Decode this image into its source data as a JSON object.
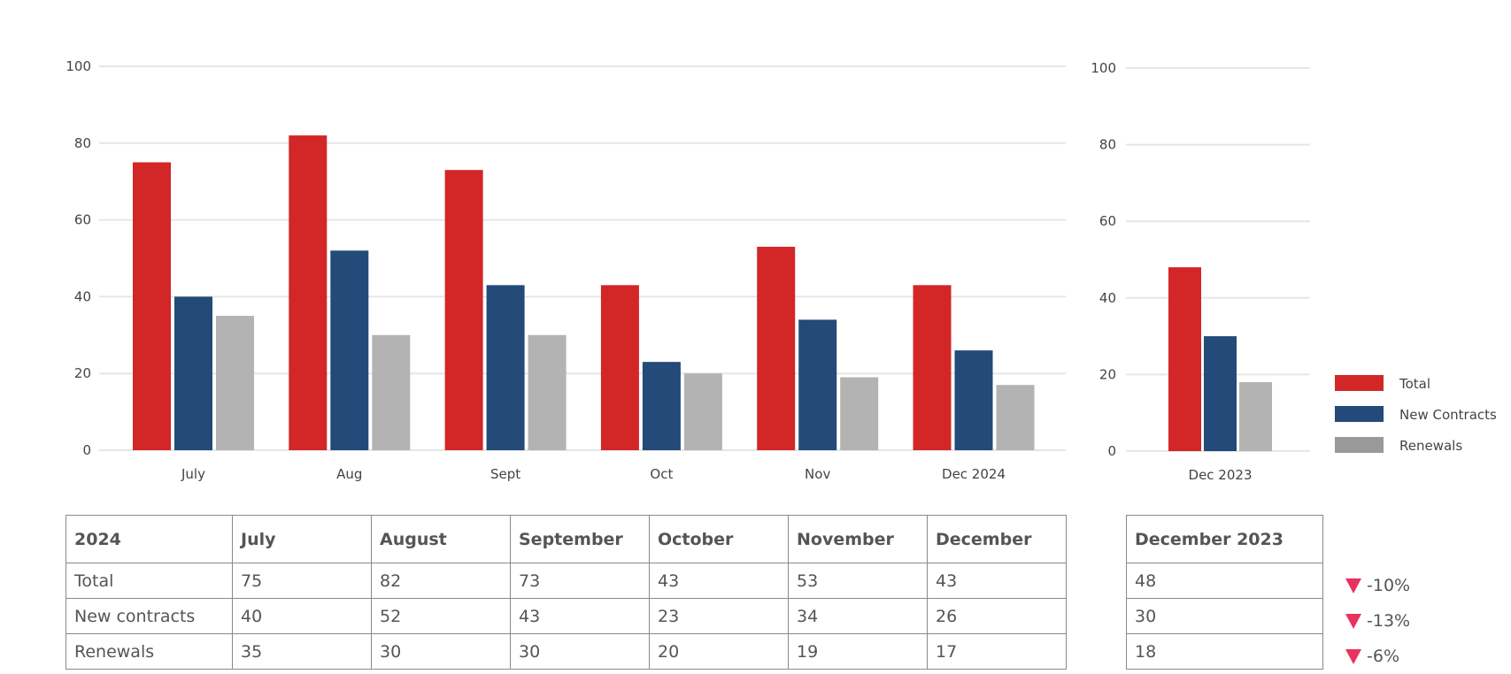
{
  "colors": {
    "total": "#d32627",
    "new_contracts": "#234a78",
    "renewals": "#b3b3b3",
    "renewals_legend": "#999999",
    "down": "#e8325f",
    "grid": "#e6e6e6"
  },
  "chart_data": [
    {
      "type": "bar",
      "categories": [
        "July",
        "Aug",
        "Sept",
        "Oct",
        "Nov",
        "Dec 2024"
      ],
      "series": [
        {
          "name": "Total",
          "values": [
            75,
            82,
            73,
            43,
            53,
            43
          ]
        },
        {
          "name": "New Contracts",
          "values": [
            40,
            52,
            43,
            23,
            34,
            26
          ]
        },
        {
          "name": "Renewals",
          "values": [
            35,
            30,
            30,
            20,
            19,
            17
          ]
        }
      ],
      "ylim": [
        0,
        100
      ],
      "yticks": [
        "0",
        "20",
        "40",
        "60",
        "80",
        "100"
      ],
      "grid": true
    },
    {
      "type": "bar",
      "categories": [
        "Dec 2023"
      ],
      "series": [
        {
          "name": "Total",
          "values": [
            48
          ]
        },
        {
          "name": "New Contracts",
          "values": [
            30
          ]
        },
        {
          "name": "Renewals",
          "values": [
            18
          ]
        }
      ],
      "ylim": [
        0,
        100
      ],
      "yticks": [
        "0",
        "20",
        "40",
        "60",
        "80",
        "100"
      ],
      "grid": true,
      "legend": "right"
    }
  ],
  "legend": [
    "Total",
    "New Contracts",
    "Renewals"
  ],
  "table_main": {
    "headers": [
      "2024",
      "July",
      "August",
      "September",
      "October",
      "November",
      "December"
    ],
    "rows": [
      [
        "Total",
        "75",
        "82",
        "73",
        "43",
        "53",
        "43"
      ],
      [
        "New contracts",
        "40",
        "52",
        "43",
        "23",
        "34",
        "26"
      ],
      [
        "Renewals",
        "35",
        "30",
        "30",
        "20",
        "19",
        "17"
      ]
    ]
  },
  "table_side": {
    "header": "December 2023",
    "rows": [
      "48",
      "30",
      "18"
    ]
  },
  "changes": [
    "-10%",
    "-13%",
    "-6%"
  ]
}
